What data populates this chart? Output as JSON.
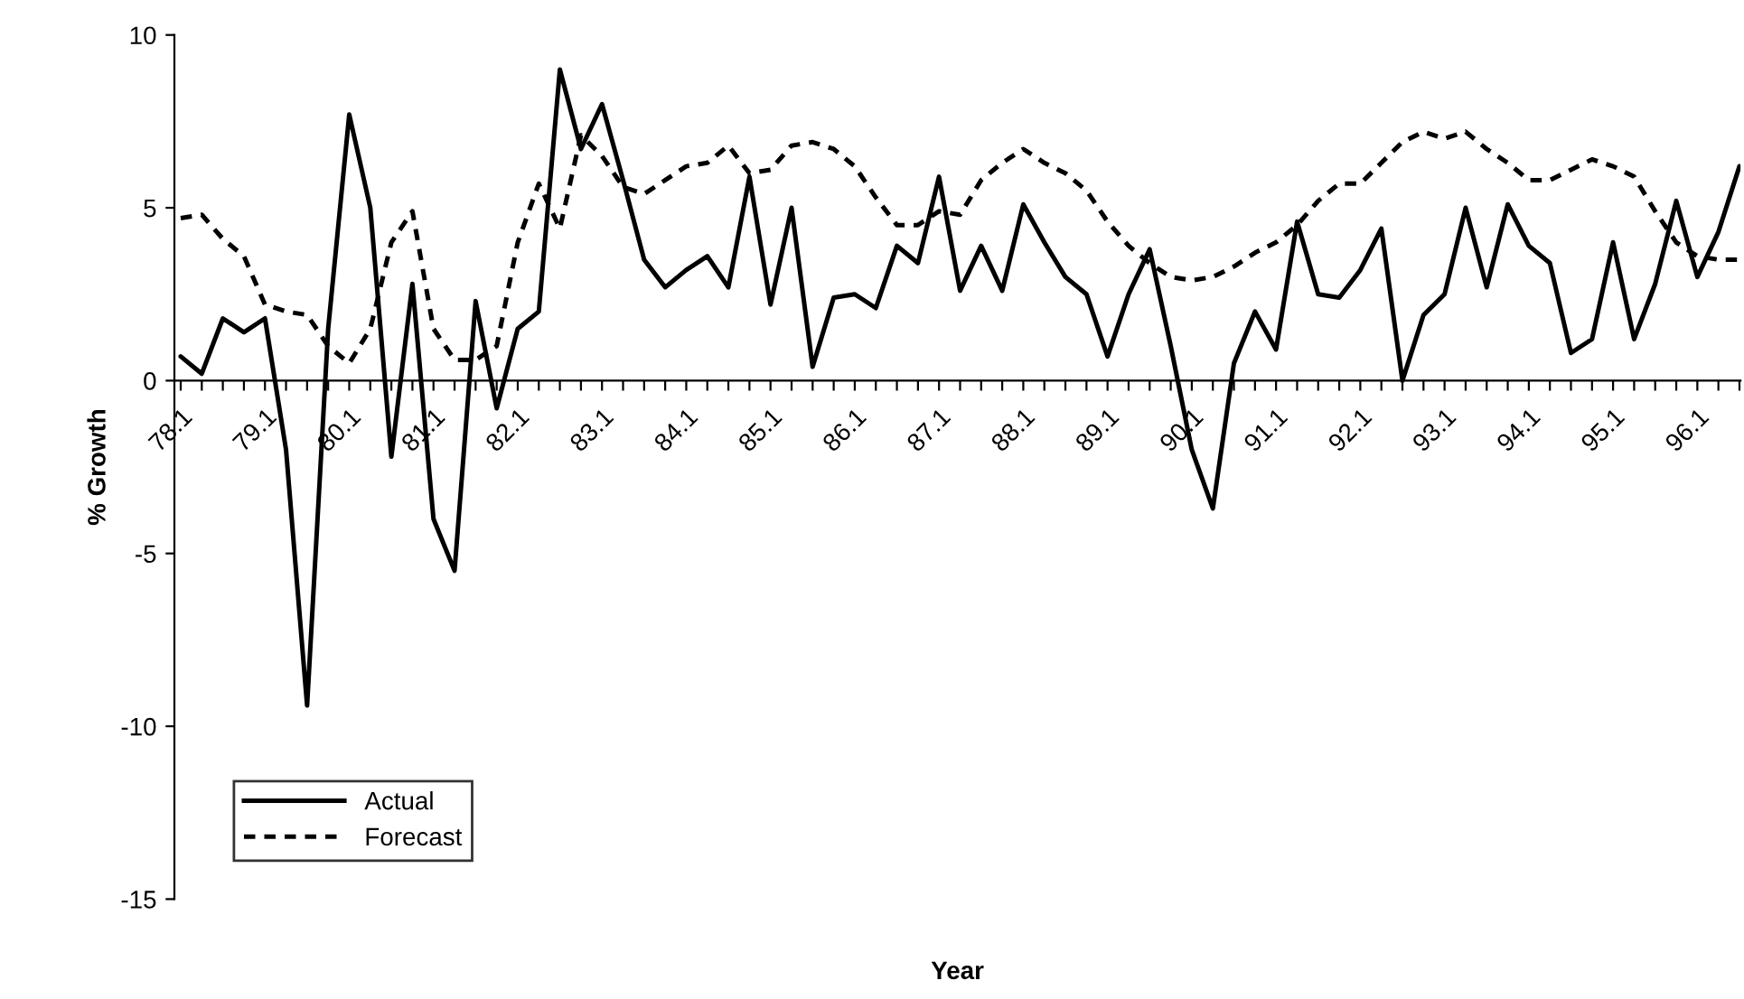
{
  "chart_data": {
    "type": "line",
    "xlabel": "Year",
    "ylabel": "% Growth",
    "categories": [
      "78.1",
      null,
      null,
      null,
      "79.1",
      null,
      null,
      null,
      "80.1",
      null,
      null,
      null,
      "81.1",
      null,
      null,
      null,
      "82.1",
      null,
      null,
      null,
      "83.1",
      null,
      null,
      null,
      "84.1",
      null,
      null,
      null,
      "85.1",
      null,
      null,
      null,
      "86.1",
      null,
      null,
      null,
      "87.1",
      null,
      null,
      null,
      "88.1",
      null,
      null,
      null,
      "89.1",
      null,
      null,
      null,
      "90.1",
      null,
      null,
      null,
      "91.1",
      null,
      null,
      null,
      "92.1",
      null,
      null,
      null,
      "93.1",
      null,
      null,
      null,
      "94.1",
      null,
      null,
      null,
      "95.1",
      null,
      null,
      null,
      "96.1",
      null,
      null
    ],
    "series": [
      {
        "name": "Actual",
        "color": "#000000",
        "line_style": "solid",
        "values": [
          0.7,
          0.2,
          1.8,
          1.4,
          1.8,
          -2,
          -9.4,
          1.5,
          7.7,
          5.0,
          -2.2,
          2.8,
          -4.0,
          -5.5,
          2.3,
          -0.8,
          1.5,
          2.0,
          9.0,
          6.7,
          8.0,
          5.8,
          3.5,
          2.7,
          3.2,
          3.6,
          2.7,
          5.9,
          2.2,
          5.0,
          0.4,
          2.4,
          2.5,
          2.1,
          3.9,
          3.4,
          5.9,
          2.6,
          3.9,
          2.6,
          5.1,
          4.0,
          3.0,
          2.5,
          0.7,
          2.5,
          3.8,
          1.0,
          -2.0,
          -3.7,
          0.5,
          2.0,
          0.9,
          4.6,
          2.5,
          2.4,
          3.2,
          4.4,
          0.0,
          1.9,
          2.5,
          5.0,
          2.7,
          5.1,
          3.9,
          3.4,
          0.8,
          1.2,
          4.0,
          1.2,
          2.8,
          5.2,
          3.0,
          4.3,
          6.2
        ]
      },
      {
        "name": "Forecast",
        "color": "#000000",
        "line_style": "dashed",
        "values": [
          4.7,
          4.8,
          4.1,
          3.6,
          2.2,
          2.0,
          1.9,
          1.0,
          0.5,
          1.5,
          4.0,
          4.9,
          1.5,
          0.6,
          0.6,
          1.0,
          4.0,
          5.7,
          4.4,
          7.1,
          6.5,
          5.6,
          5.4,
          5.8,
          6.2,
          6.3,
          6.8,
          6.0,
          6.1,
          6.8,
          6.9,
          6.7,
          6.2,
          5.3,
          4.5,
          4.5,
          4.9,
          4.8,
          5.8,
          6.3,
          6.7,
          6.3,
          6.0,
          5.5,
          4.6,
          3.9,
          3.4,
          3.0,
          2.9,
          3.0,
          3.3,
          3.7,
          4.0,
          4.5,
          5.2,
          5.7,
          5.7,
          6.3,
          6.9,
          7.2,
          7.0,
          7.2,
          6.7,
          6.3,
          5.8,
          5.8,
          6.1,
          6.4,
          6.2,
          5.9,
          4.9,
          4.0,
          3.6,
          3.5,
          3.5
        ]
      }
    ],
    "ylim": [
      -15,
      10
    ],
    "yticks": [
      -15,
      -10,
      -5,
      0,
      5,
      10
    ],
    "grid": false,
    "legend": "bottom left"
  }
}
